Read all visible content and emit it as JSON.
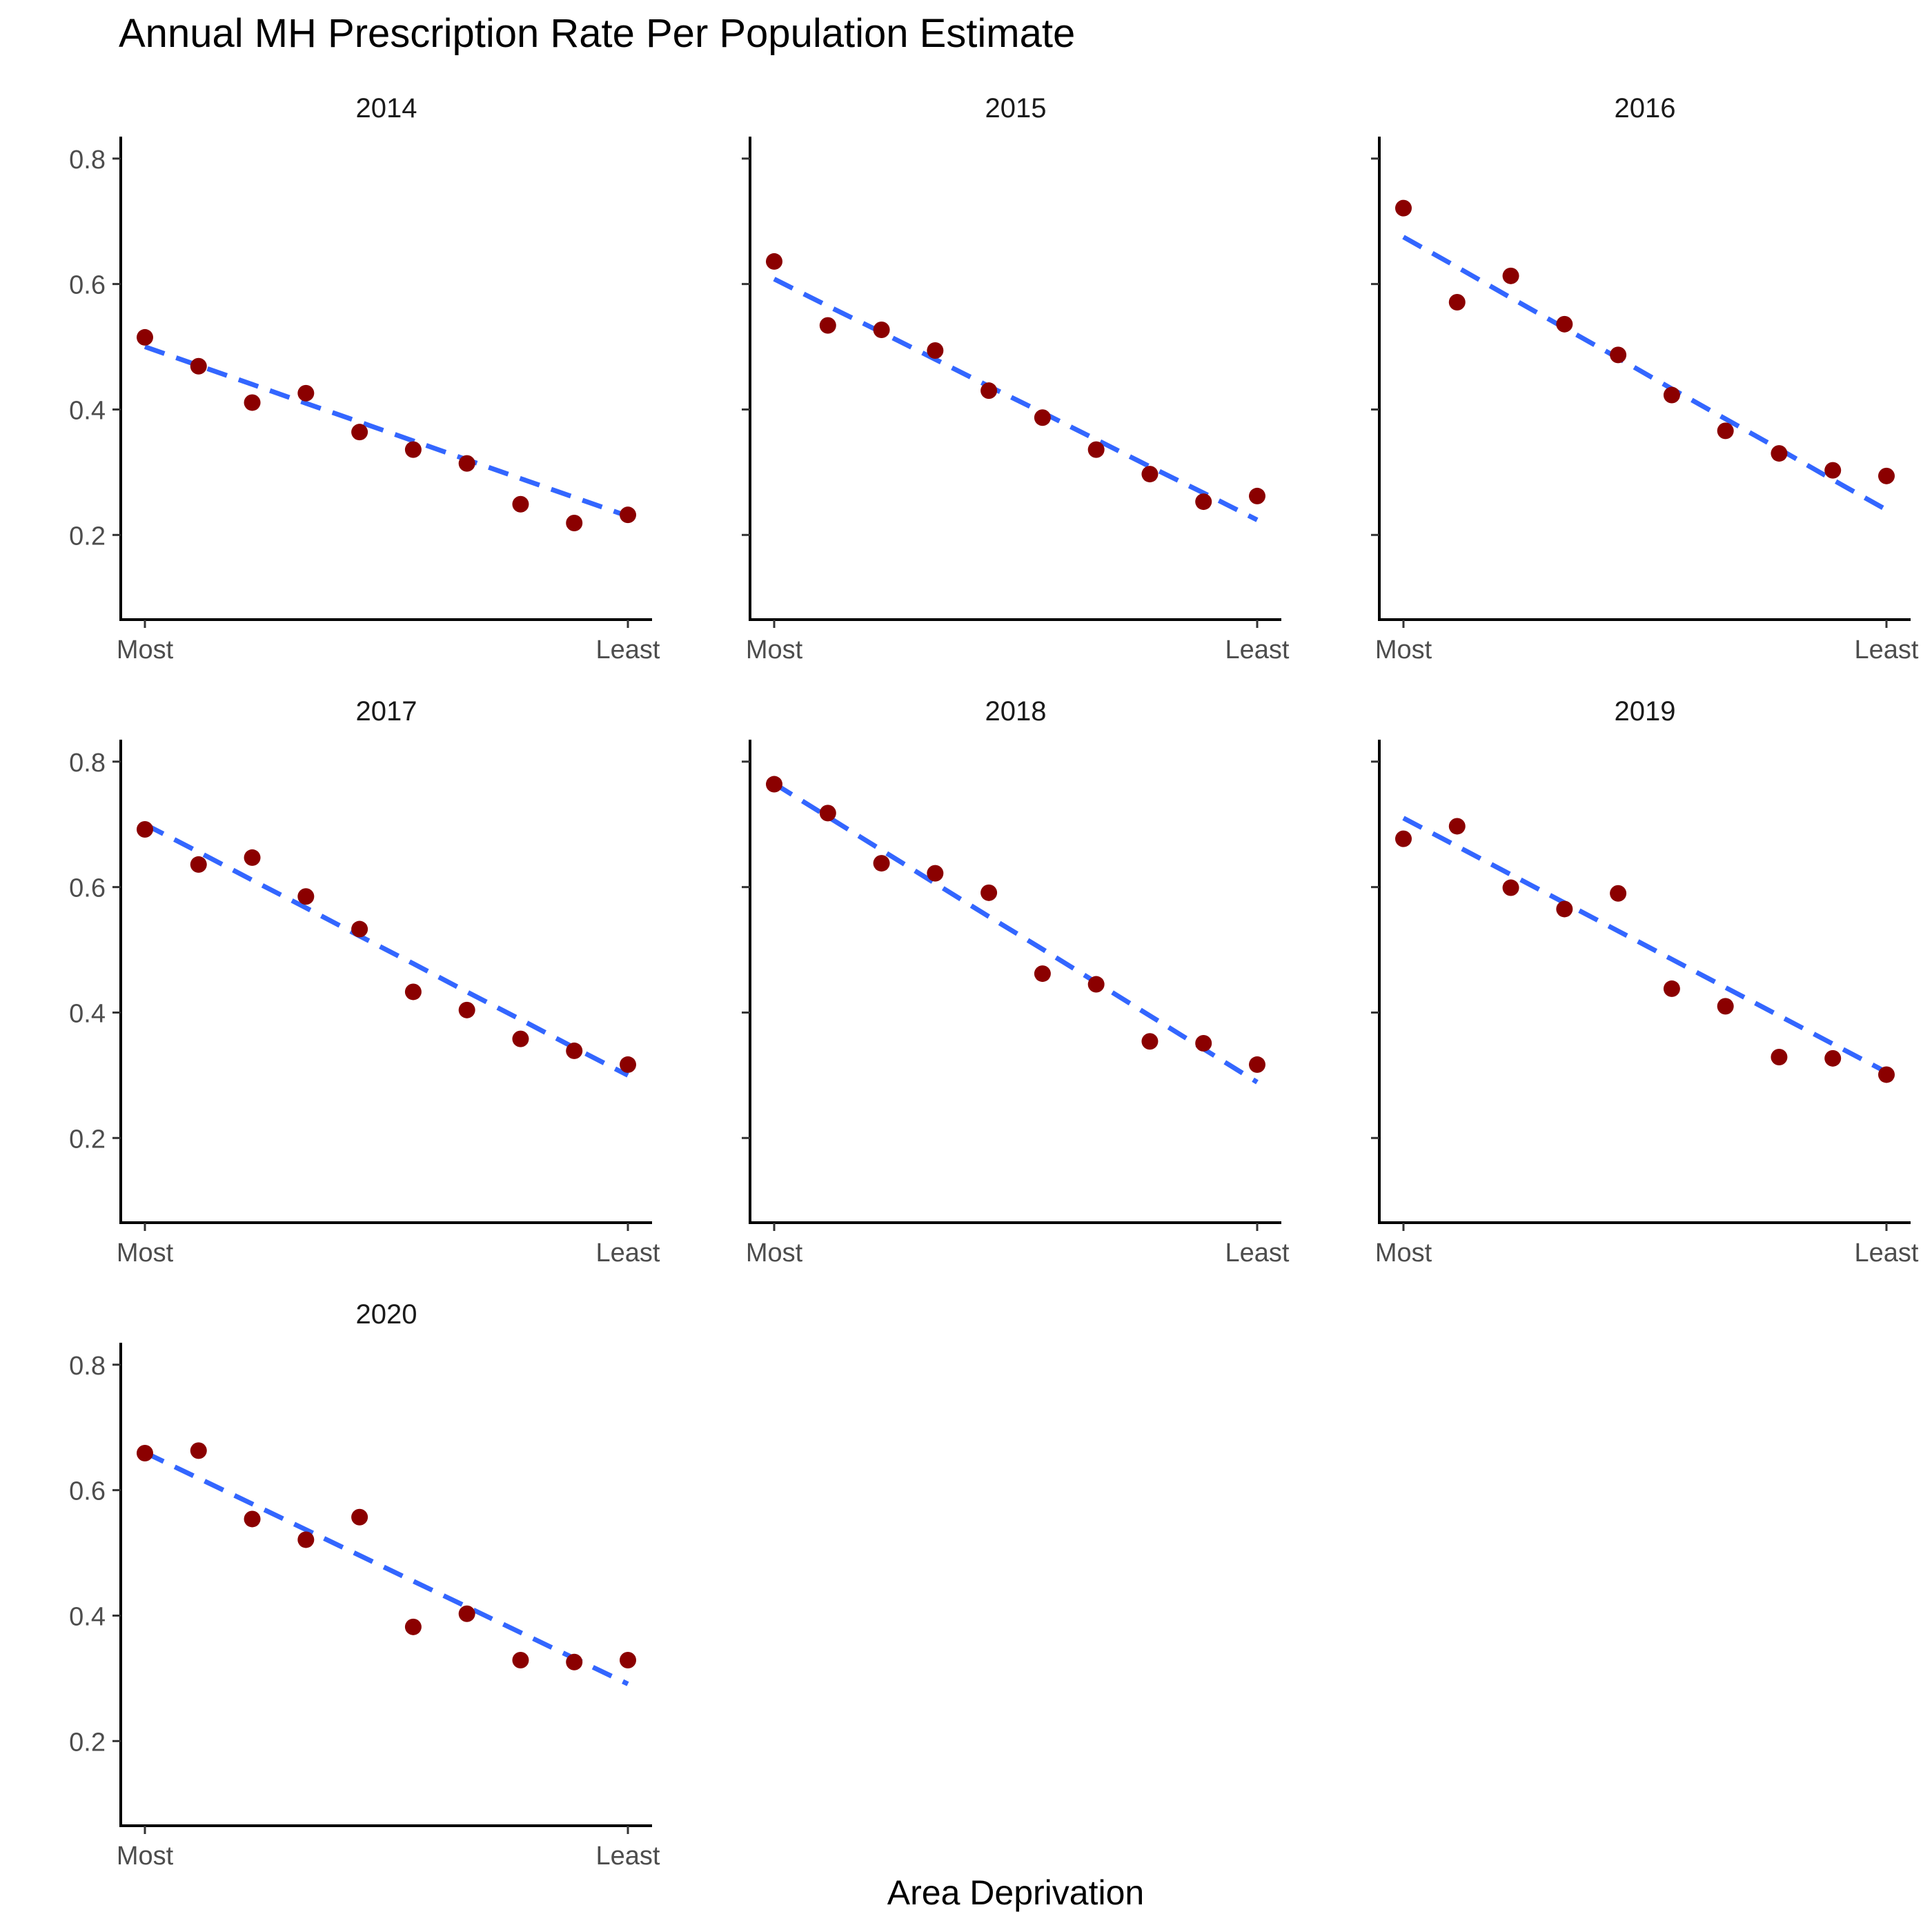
{
  "title": "Annual MH Prescription Rate Per Population Estimate",
  "xlabel": "Area Deprivation",
  "ylabel": "",
  "colors": {
    "point": "#8B0000",
    "trend": "#3366FF",
    "axis": "#000000",
    "tick_label": "#4D4D4D"
  },
  "chart_data": [
    {
      "type": "scatter",
      "panel": "2014",
      "title": "2014",
      "x": [
        1,
        2,
        3,
        4,
        5,
        6,
        7,
        8,
        9,
        10
      ],
      "x_tick_labels": [
        "Most",
        "Least"
      ],
      "y": [
        0.515,
        0.469,
        0.411,
        0.426,
        0.364,
        0.336,
        0.314,
        0.249,
        0.219,
        0.232
      ],
      "trend": {
        "style": "dashed",
        "y": [
          0.5,
          0.47,
          0.44,
          0.41,
          0.38,
          0.35,
          0.32,
          0.29,
          0.26,
          0.23
        ]
      },
      "ylim": [
        0.065,
        0.835
      ],
      "yticks": [
        0.2,
        0.4,
        0.6,
        0.8
      ],
      "ytick_labels": [
        "0.2",
        "0.4",
        "0.6",
        "0.8"
      ]
    },
    {
      "type": "scatter",
      "panel": "2015",
      "title": "2015",
      "x": [
        1,
        2,
        3,
        4,
        5,
        6,
        7,
        8,
        9,
        10
      ],
      "x_tick_labels": [
        "Most",
        "Least"
      ],
      "y": [
        0.636,
        0.534,
        0.527,
        0.494,
        0.43,
        0.387,
        0.336,
        0.297,
        0.253,
        0.262
      ],
      "trend": {
        "style": "dashed",
        "y": [
          0.608,
          0.565,
          0.523,
          0.48,
          0.437,
          0.395,
          0.352,
          0.309,
          0.267,
          0.224
        ]
      },
      "ylim": [
        0.065,
        0.835
      ],
      "yticks": [
        0.2,
        0.4,
        0.6,
        0.8
      ],
      "ytick_labels": [
        "0.2",
        "0.4",
        "0.6",
        "0.8"
      ]
    },
    {
      "type": "scatter",
      "panel": "2016",
      "title": "2016",
      "x": [
        1,
        2,
        3,
        4,
        5,
        6,
        7,
        8,
        9,
        10
      ],
      "x_tick_labels": [
        "Most",
        "Least"
      ],
      "y": [
        0.721,
        0.571,
        0.613,
        0.536,
        0.487,
        0.423,
        0.366,
        0.33,
        0.303,
        0.294
      ],
      "trend": {
        "style": "dashed",
        "y": [
          0.675,
          0.627,
          0.578,
          0.53,
          0.482,
          0.433,
          0.385,
          0.337,
          0.288,
          0.24
        ]
      },
      "ylim": [
        0.065,
        0.835
      ],
      "yticks": [
        0.2,
        0.4,
        0.6,
        0.8
      ],
      "ytick_labels": [
        "0.2",
        "0.4",
        "0.6",
        "0.8"
      ]
    },
    {
      "type": "scatter",
      "panel": "2017",
      "title": "2017",
      "x": [
        1,
        2,
        3,
        4,
        5,
        6,
        7,
        8,
        9,
        10
      ],
      "x_tick_labels": [
        "Most",
        "Least"
      ],
      "y": [
        0.692,
        0.636,
        0.647,
        0.585,
        0.533,
        0.433,
        0.404,
        0.358,
        0.339,
        0.317
      ],
      "trend": {
        "style": "dashed",
        "y": [
          0.7,
          0.656,
          0.611,
          0.567,
          0.522,
          0.478,
          0.433,
          0.389,
          0.344,
          0.3
        ]
      },
      "ylim": [
        0.065,
        0.835
      ],
      "yticks": [
        0.2,
        0.4,
        0.6,
        0.8
      ],
      "ytick_labels": [
        "0.2",
        "0.4",
        "0.6",
        "0.8"
      ]
    },
    {
      "type": "scatter",
      "panel": "2018",
      "title": "2018",
      "x": [
        1,
        2,
        3,
        4,
        5,
        6,
        7,
        8,
        9,
        10
      ],
      "x_tick_labels": [
        "Most",
        "Least"
      ],
      "y": [
        0.764,
        0.718,
        0.638,
        0.622,
        0.591,
        0.462,
        0.445,
        0.354,
        0.351,
        0.317
      ],
      "trend": {
        "style": "dashed",
        "y": [
          0.765,
          0.712,
          0.659,
          0.606,
          0.553,
          0.501,
          0.448,
          0.395,
          0.342,
          0.289
        ]
      },
      "ylim": [
        0.065,
        0.835
      ],
      "yticks": [
        0.2,
        0.4,
        0.6,
        0.8
      ],
      "ytick_labels": [
        "0.2",
        "0.4",
        "0.6",
        "0.8"
      ]
    },
    {
      "type": "scatter",
      "panel": "2019",
      "title": "2019",
      "x": [
        1,
        2,
        3,
        4,
        5,
        6,
        7,
        8,
        9,
        10
      ],
      "x_tick_labels": [
        "Most",
        "Least"
      ],
      "y": [
        0.677,
        0.697,
        0.599,
        0.565,
        0.59,
        0.438,
        0.41,
        0.329,
        0.327,
        0.301
      ],
      "trend": {
        "style": "dashed",
        "y": [
          0.71,
          0.665,
          0.62,
          0.575,
          0.53,
          0.485,
          0.44,
          0.395,
          0.35,
          0.305
        ]
      },
      "ylim": [
        0.065,
        0.835
      ],
      "yticks": [
        0.2,
        0.4,
        0.6,
        0.8
      ],
      "ytick_labels": [
        "0.2",
        "0.4",
        "0.6",
        "0.8"
      ]
    },
    {
      "type": "scatter",
      "panel": "2020",
      "title": "2020",
      "x": [
        1,
        2,
        3,
        4,
        5,
        6,
        7,
        8,
        9,
        10
      ],
      "x_tick_labels": [
        "Most",
        "Least"
      ],
      "y": [
        0.659,
        0.663,
        0.554,
        0.521,
        0.557,
        0.382,
        0.403,
        0.329,
        0.326,
        0.329
      ],
      "trend": {
        "style": "dashed",
        "y": [
          0.66,
          0.619,
          0.578,
          0.537,
          0.496,
          0.455,
          0.414,
          0.373,
          0.332,
          0.291
        ]
      },
      "ylim": [
        0.065,
        0.835
      ],
      "yticks": [
        0.2,
        0.4,
        0.6,
        0.8
      ],
      "ytick_labels": [
        "0.2",
        "0.4",
        "0.6",
        "0.8"
      ]
    }
  ]
}
